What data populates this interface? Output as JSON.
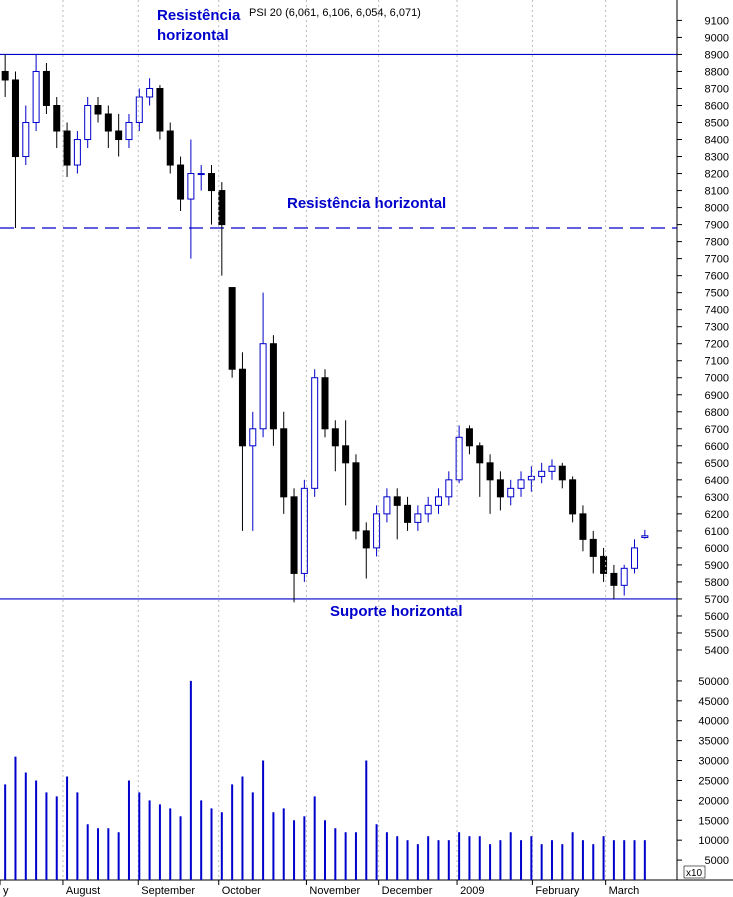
{
  "chart_data": [
    {
      "type": "candlestick",
      "legend_label": "PSI 20 (6,061, 6,106, 6,054, 6,071)",
      "up_color": "#0000cc",
      "down_color": "#000000",
      "xlim": [
        -0.5,
        62.5
      ],
      "ylim": [
        5300,
        9220
      ],
      "yticks": [
        5400,
        5500,
        5600,
        5700,
        5800,
        5900,
        6000,
        6100,
        6200,
        6300,
        6400,
        6500,
        6600,
        6700,
        6800,
        6900,
        7000,
        7100,
        7200,
        7300,
        7400,
        7500,
        7600,
        7700,
        7800,
        7900,
        8000,
        8100,
        8200,
        8300,
        8400,
        8500,
        8600,
        8700,
        8800,
        8900,
        9000,
        9100
      ],
      "open": [
        8800,
        8750,
        8300,
        8500,
        8800,
        8600,
        8450,
        8250,
        8400,
        8600,
        8550,
        8450,
        8400,
        8500,
        8650,
        8700,
        8450,
        8250,
        8050,
        8200,
        8200,
        8100,
        7530,
        7050,
        6600,
        6700,
        7200,
        6700,
        6300,
        5850,
        6350,
        7000,
        6700,
        6600,
        6500,
        6100,
        6000,
        6200,
        6300,
        6250,
        6150,
        6200,
        6250,
        6300,
        6400,
        6700,
        6600,
        6500,
        6400,
        6300,
        6350,
        6400,
        6420,
        6450,
        6480,
        6400,
        6200,
        6050,
        5950,
        5850,
        5780,
        5880,
        6061
      ],
      "high": [
        8900,
        8800,
        8600,
        8900,
        8850,
        8650,
        8500,
        8450,
        8650,
        8650,
        8600,
        8550,
        8550,
        8700,
        8760,
        8720,
        8500,
        8300,
        8400,
        8250,
        8250,
        8150,
        7530,
        7150,
        6800,
        7500,
        7250,
        6800,
        6350,
        6400,
        7050,
        7050,
        6750,
        6750,
        6550,
        6150,
        6250,
        6350,
        6350,
        6300,
        6250,
        6300,
        6350,
        6450,
        6720,
        6720,
        6620,
        6550,
        6450,
        6400,
        6450,
        6480,
        6500,
        6520,
        6500,
        6420,
        6250,
        6100,
        6000,
        5900,
        5900,
        6050,
        6106
      ],
      "low": [
        8650,
        7880,
        8250,
        8450,
        8550,
        8350,
        8180,
        8200,
        8350,
        8500,
        8350,
        8300,
        8350,
        8450,
        8600,
        8400,
        8200,
        7980,
        7700,
        8100,
        7900,
        7600,
        7000,
        6100,
        6100,
        6650,
        6600,
        6200,
        5680,
        5800,
        6300,
        6650,
        6450,
        6250,
        6050,
        5820,
        5950,
        6150,
        6050,
        6100,
        6100,
        6150,
        6200,
        6250,
        6380,
        6550,
        6300,
        6200,
        6220,
        6250,
        6300,
        6330,
        6380,
        6400,
        6350,
        6150,
        5980,
        5850,
        5800,
        5700,
        5720,
        5850,
        6054
      ],
      "close": [
        8750,
        8300,
        8500,
        8800,
        8600,
        8450,
        8250,
        8400,
        8600,
        8550,
        8450,
        8400,
        8500,
        8650,
        8700,
        8450,
        8250,
        8050,
        8200,
        8200,
        8100,
        7900,
        7050,
        6600,
        6700,
        7200,
        6700,
        6300,
        5850,
        6350,
        7000,
        6700,
        6600,
        6500,
        6100,
        6000,
        6200,
        6300,
        6250,
        6150,
        6200,
        6250,
        6300,
        6400,
        6650,
        6600,
        6500,
        6400,
        6300,
        6350,
        6400,
        6420,
        6450,
        6480,
        6400,
        6200,
        6050,
        5950,
        5850,
        5780,
        5880,
        6000,
        6071
      ],
      "hlines": [
        {
          "value": 8900,
          "style": "solid"
        },
        {
          "value": 7880,
          "style": "dashed"
        },
        {
          "value": 5700,
          "style": "solid"
        }
      ],
      "line_color": "#0000cc",
      "annotations": [
        {
          "lines": [
            "Resistência",
            "horizontal"
          ]
        },
        {
          "lines": [
            "Resistência horizontal"
          ]
        },
        {
          "lines": [
            "Suporte horizontal"
          ]
        }
      ]
    },
    {
      "type": "bar",
      "color": "#0000cc",
      "xlim": [
        -0.5,
        62.5
      ],
      "ylim": [
        0,
        55000
      ],
      "yticks": [
        5000,
        10000,
        15000,
        20000,
        25000,
        30000,
        35000,
        40000,
        45000,
        50000
      ],
      "unit_label": "x10",
      "values": [
        24000,
        31000,
        27000,
        25000,
        22000,
        21000,
        26000,
        22000,
        14000,
        13000,
        13000,
        12000,
        25000,
        22000,
        20000,
        19000,
        18000,
        16000,
        50000,
        20000,
        18000,
        17000,
        24000,
        26000,
        22000,
        30000,
        17000,
        18000,
        15000,
        16000,
        21000,
        15000,
        13000,
        12000,
        12000,
        30000,
        14000,
        12000,
        11000,
        10000,
        9000,
        11000,
        10000,
        10000,
        12000,
        11000,
        11000,
        9000,
        10000,
        12000,
        10000,
        11000,
        9000,
        10000,
        9000,
        12000,
        10000,
        9000,
        11000,
        10000,
        10000,
        10000,
        10000
      ],
      "xgrid": true,
      "xticks": [
        {
          "value": -0.5,
          "label": "y"
        },
        {
          "value": 5.6,
          "label": "August"
        },
        {
          "value": 12.9,
          "label": "September"
        },
        {
          "value": 20.7,
          "label": "October"
        },
        {
          "value": 29.2,
          "label": "November"
        },
        {
          "value": 36.2,
          "label": "December"
        },
        {
          "value": 43.8,
          "label": "2009"
        },
        {
          "value": 51.1,
          "label": "February"
        },
        {
          "value": 58.2,
          "label": "March"
        }
      ]
    }
  ]
}
